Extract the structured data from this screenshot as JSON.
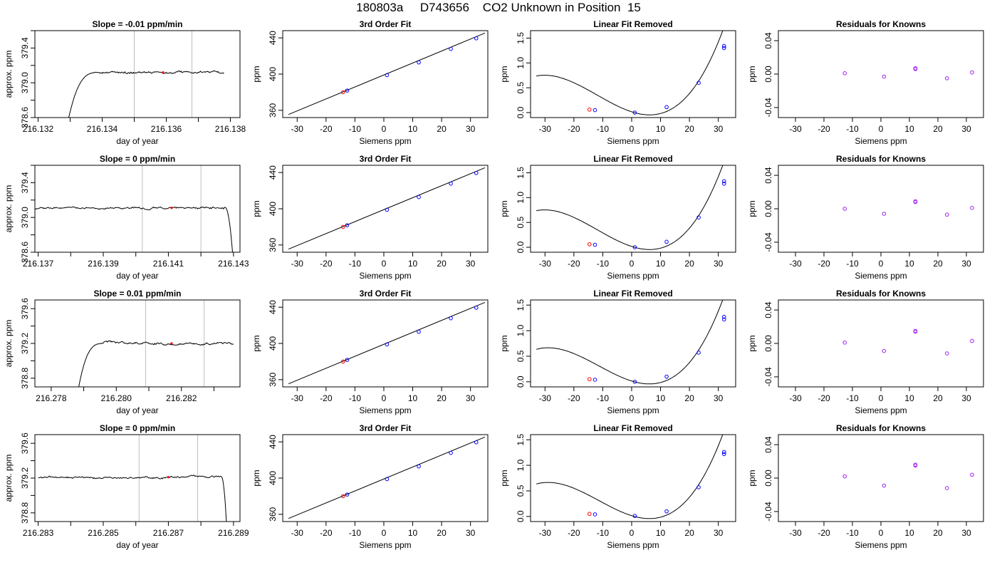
{
  "figure": {
    "title": "180803a     D743656    CO2 Unknown in Position  15"
  },
  "colors": {
    "line": "#000000",
    "grid": "#bebebe",
    "unknown": "#ff0000",
    "known": "#0000ff",
    "residual": "#a020f0"
  },
  "chart_data": [
    {
      "type": "line",
      "id": "r1-time",
      "title": "Slope =  -0.01  ppm/min",
      "xlabel": "day of year",
      "ylabel": "approx. ppm",
      "xlim": [
        216.1319,
        216.1383
      ],
      "ylim": [
        378.6,
        379.6
      ],
      "xticks": [
        216.132,
        216.134,
        216.136,
        216.138
      ],
      "xtick_labels": [
        "216.132",
        "216.134",
        "216.136",
        "216.138"
      ],
      "yticks": [
        378.6,
        379.0,
        379.4
      ],
      "ytick_labels": [
        "378.6",
        "379.0",
        "379.4"
      ],
      "vlines": [
        216.135,
        216.1368
      ],
      "trace": {
        "start": 216.1329,
        "rise_end": 216.1339,
        "end": 216.1378,
        "base": 378.5,
        "plateau": 379.12,
        "noise": 0.012,
        "fall": false
      },
      "marker": {
        "x": 216.1359,
        "y": 379.12
      }
    },
    {
      "type": "line",
      "id": "r2-time",
      "title": "Slope =  0  ppm/min",
      "xlabel": "day of year",
      "ylabel": "approx. ppm",
      "xlim": [
        216.1369,
        216.1432
      ],
      "ylim": [
        378.6,
        379.6
      ],
      "xticks": [
        216.137,
        216.139,
        216.141,
        216.143
      ],
      "xtick_labels": [
        "216.137",
        "216.139",
        "216.141",
        "216.143"
      ],
      "yticks": [
        378.6,
        379.0,
        379.4
      ],
      "ytick_labels": [
        "378.6",
        "379.0",
        "379.4"
      ],
      "vlines": [
        216.1402,
        216.142
      ],
      "trace": {
        "start": 216.1369,
        "end": 216.143,
        "fall_start": 216.1427,
        "base": 378.5,
        "plateau": 379.11,
        "noise": 0.012,
        "fall": true
      },
      "marker": {
        "x": 216.1411,
        "y": 379.11
      }
    },
    {
      "type": "line",
      "id": "r3-time",
      "title": "Slope =  0.01  ppm/min",
      "xlabel": "day of year",
      "ylabel": "approx. ppm",
      "xlim": [
        216.2775,
        216.2838
      ],
      "ylim": [
        378.7,
        379.7
      ],
      "xticks": [
        216.278,
        216.28,
        216.282
      ],
      "xtick_labels": [
        "216.278",
        "216.280",
        "216.282"
      ],
      "yticks": [
        378.8,
        379.2,
        379.6
      ],
      "ytick_labels": [
        "378.8",
        "379.2",
        "379.6"
      ],
      "vlines": [
        216.2809,
        216.2827
      ],
      "trace": {
        "start": 216.2788,
        "rise_end": 216.2796,
        "end": 216.2836,
        "base": 378.6,
        "plateau": 379.2,
        "noise": 0.013,
        "fall": false
      },
      "marker": {
        "x": 216.2817,
        "y": 379.2
      }
    },
    {
      "type": "line",
      "id": "r4-time",
      "title": "Slope =  0  ppm/min",
      "xlabel": "day of year",
      "ylabel": "approx. ppm",
      "xlim": [
        216.2829,
        216.2892
      ],
      "ylim": [
        378.7,
        379.7
      ],
      "xticks": [
        216.283,
        216.285,
        216.287,
        216.289
      ],
      "xtick_labels": [
        "216.283",
        "216.285",
        "216.287",
        "216.289"
      ],
      "yticks": [
        378.8,
        379.2,
        379.6
      ],
      "ytick_labels": [
        "378.8",
        "379.2",
        "379.6"
      ],
      "vlines": [
        216.2861,
        216.2879
      ],
      "trace": {
        "start": 216.283,
        "end": 216.2888,
        "fall_start": 216.2886,
        "base": 378.6,
        "plateau": 379.21,
        "noise": 0.012,
        "fall": true
      },
      "marker": {
        "x": 216.287,
        "y": 379.21
      }
    },
    {
      "type": "scatter",
      "id": "r1-fit",
      "title": "3rd Order Fit",
      "xlabel": "Siemens ppm",
      "ylabel": "ppm",
      "xlim": [
        -35,
        36
      ],
      "ylim": [
        352,
        448
      ],
      "xticks": [
        -30,
        -20,
        -10,
        0,
        10,
        20,
        30
      ],
      "yticks": [
        360,
        400,
        440
      ],
      "curve": {
        "x": [
          -33,
          35
        ],
        "y": [
          355.4,
          445.3
        ]
      },
      "knowns": [
        {
          "x": -12.7,
          "y": 381.8
        },
        {
          "x": 1.1,
          "y": 398.9
        },
        {
          "x": 12.1,
          "y": 412.9
        },
        {
          "x": 23.2,
          "y": 427.8
        },
        {
          "x": 32.0,
          "y": 439.5
        }
      ],
      "unknown": {
        "x": -14.1,
        "y": 380.0
      }
    },
    {
      "type": "scatter",
      "id": "r2-fit",
      "title": "3rd Order Fit",
      "xlabel": "Siemens ppm",
      "ylabel": "ppm",
      "xlim": [
        -35,
        36
      ],
      "ylim": [
        352,
        448
      ],
      "xticks": [
        -30,
        -20,
        -10,
        0,
        10,
        20,
        30
      ],
      "yticks": [
        360,
        400,
        440
      ],
      "curve": {
        "x": [
          -33,
          35
        ],
        "y": [
          355.4,
          445.3
        ]
      },
      "knowns": [
        {
          "x": -12.7,
          "y": 381.8
        },
        {
          "x": 1.1,
          "y": 398.9
        },
        {
          "x": 12.1,
          "y": 412.9
        },
        {
          "x": 23.2,
          "y": 427.8
        },
        {
          "x": 32.0,
          "y": 439.5
        }
      ],
      "unknown": {
        "x": -14.1,
        "y": 380.0
      }
    },
    {
      "type": "scatter",
      "id": "r3-fit",
      "title": "3rd Order Fit",
      "xlabel": "Siemens ppm",
      "ylabel": "ppm",
      "xlim": [
        -35,
        36
      ],
      "ylim": [
        352,
        448
      ],
      "xticks": [
        -30,
        -20,
        -10,
        0,
        10,
        20,
        30
      ],
      "yticks": [
        360,
        400,
        440
      ],
      "curve": {
        "x": [
          -33,
          35
        ],
        "y": [
          355.4,
          445.3
        ]
      },
      "knowns": [
        {
          "x": -12.7,
          "y": 381.8
        },
        {
          "x": 1.1,
          "y": 398.9
        },
        {
          "x": 12.1,
          "y": 412.9
        },
        {
          "x": 23.2,
          "y": 427.8
        },
        {
          "x": 32.0,
          "y": 439.5
        }
      ],
      "unknown": {
        "x": -14.1,
        "y": 380.0
      }
    },
    {
      "type": "scatter",
      "id": "r4-fit",
      "title": "3rd Order Fit",
      "xlabel": "Siemens ppm",
      "ylabel": "ppm",
      "xlim": [
        -35,
        36
      ],
      "ylim": [
        352,
        448
      ],
      "xticks": [
        -30,
        -20,
        -10,
        0,
        10,
        20,
        30
      ],
      "yticks": [
        360,
        400,
        440
      ],
      "curve": {
        "x": [
          -33,
          35
        ],
        "y": [
          355.4,
          445.3
        ]
      },
      "knowns": [
        {
          "x": -12.7,
          "y": 381.8
        },
        {
          "x": 1.1,
          "y": 398.9
        },
        {
          "x": 12.1,
          "y": 412.9
        },
        {
          "x": 23.2,
          "y": 427.8
        },
        {
          "x": 32.0,
          "y": 439.5
        }
      ],
      "unknown": {
        "x": -14.1,
        "y": 380.0
      }
    },
    {
      "type": "scatter",
      "id": "r1-linrem",
      "title": "Linear Fit Removed",
      "xlabel": "Siemens ppm",
      "ylabel": "ppm",
      "xlim": [
        -35,
        36
      ],
      "ylim": [
        -0.1,
        1.65
      ],
      "xticks": [
        -30,
        -20,
        -10,
        0,
        10,
        20,
        30
      ],
      "yticks": [
        0.0,
        0.5,
        1.0,
        1.5
      ],
      "ytick_labels": [
        "0.0",
        "0.5",
        "1.0",
        "1.5"
      ],
      "cubic": {
        "a": 3.32e-05,
        "b": 0.00119,
        "c": -0.0187,
        "d": 0.0165,
        "x0": -33,
        "x1": 35
      },
      "knowns": [
        {
          "x": -12.7,
          "y": 0.05
        },
        {
          "x": 1.1,
          "y": 0.0
        },
        {
          "x": 12.1,
          "y": 0.11
        },
        {
          "x": 23.2,
          "y": 0.6
        },
        {
          "x": 32.0,
          "y": 1.3
        },
        {
          "x": 32.0,
          "y": 1.34
        }
      ],
      "unknown": {
        "x": -14.6,
        "y": 0.06
      }
    },
    {
      "type": "scatter",
      "id": "r2-linrem",
      "title": "Linear Fit Removed",
      "xlabel": "Siemens ppm",
      "ylabel": "ppm",
      "xlim": [
        -35,
        36
      ],
      "ylim": [
        -0.1,
        1.65
      ],
      "xticks": [
        -30,
        -20,
        -10,
        0,
        10,
        20,
        30
      ],
      "yticks": [
        0.0,
        0.5,
        1.0,
        1.5
      ],
      "ytick_labels": [
        "0.0",
        "0.5",
        "1.0",
        "1.5"
      ],
      "cubic": {
        "a": 3.32e-05,
        "b": 0.00119,
        "c": -0.0187,
        "d": 0.0165,
        "x0": -33,
        "x1": 35
      },
      "knowns": [
        {
          "x": -12.7,
          "y": 0.05
        },
        {
          "x": 1.1,
          "y": 0.0
        },
        {
          "x": 12.1,
          "y": 0.11
        },
        {
          "x": 23.2,
          "y": 0.6
        },
        {
          "x": 32.0,
          "y": 1.28
        },
        {
          "x": 32.0,
          "y": 1.33
        }
      ],
      "unknown": {
        "x": -14.6,
        "y": 0.06
      }
    },
    {
      "type": "scatter",
      "id": "r3-linrem",
      "title": "Linear Fit Removed",
      "xlabel": "Siemens ppm",
      "ylabel": "ppm",
      "xlim": [
        -35,
        36
      ],
      "ylim": [
        -0.1,
        1.6
      ],
      "xticks": [
        -30,
        -20,
        -10,
        0,
        10,
        20,
        30
      ],
      "yticks": [
        0.0,
        0.5,
        1.0,
        1.5
      ],
      "ytick_labels": [
        "0.0",
        "0.5",
        "1.0",
        "1.5"
      ],
      "cubic": {
        "a": 3.28e-05,
        "b": 0.00112,
        "c": -0.0175,
        "d": 0.0155,
        "x0": -33,
        "x1": 35
      },
      "knowns": [
        {
          "x": -12.7,
          "y": 0.04
        },
        {
          "x": 1.1,
          "y": 0.0
        },
        {
          "x": 12.1,
          "y": 0.1
        },
        {
          "x": 23.2,
          "y": 0.57
        },
        {
          "x": 32.0,
          "y": 1.22
        },
        {
          "x": 32.0,
          "y": 1.27
        }
      ],
      "unknown": {
        "x": -14.6,
        "y": 0.05
      }
    },
    {
      "type": "scatter",
      "id": "r4-linrem",
      "title": "Linear Fit Removed",
      "xlabel": "Siemens ppm",
      "ylabel": "ppm",
      "xlim": [
        -35,
        36
      ],
      "ylim": [
        -0.1,
        1.6
      ],
      "xticks": [
        -30,
        -20,
        -10,
        0,
        10,
        20,
        30
      ],
      "yticks": [
        0.0,
        0.5,
        1.0,
        1.5
      ],
      "ytick_labels": [
        "0.0",
        "0.5",
        "1.0",
        "1.5"
      ],
      "cubic": {
        "a": 3.28e-05,
        "b": 0.00112,
        "c": -0.0175,
        "d": 0.0155,
        "x0": -33,
        "x1": 35
      },
      "knowns": [
        {
          "x": -12.7,
          "y": 0.04
        },
        {
          "x": 1.1,
          "y": 0.01
        },
        {
          "x": 12.1,
          "y": 0.1
        },
        {
          "x": 23.2,
          "y": 0.57
        },
        {
          "x": 32.0,
          "y": 1.22
        },
        {
          "x": 32.0,
          "y": 1.26
        }
      ],
      "unknown": {
        "x": -14.6,
        "y": 0.05
      }
    },
    {
      "type": "scatter",
      "id": "r1-resid",
      "title": "Residuals for Knowns",
      "xlabel": "Siemens ppm",
      "ylabel": "ppm",
      "xlim": [
        -36,
        36
      ],
      "ylim": [
        -0.052,
        0.052
      ],
      "xticks": [
        -30,
        -20,
        -10,
        0,
        10,
        20,
        30
      ],
      "yticks": [
        -0.04,
        0.0,
        0.04
      ],
      "ytick_labels": [
        "-0.04",
        "0.00",
        "0.04"
      ],
      "points": [
        {
          "x": -12.7,
          "y": 0.001
        },
        {
          "x": 1.1,
          "y": -0.003
        },
        {
          "x": 12.1,
          "y": 0.007
        },
        {
          "x": 12.1,
          "y": 0.006
        },
        {
          "x": 23.2,
          "y": -0.005
        },
        {
          "x": 32.0,
          "y": 0.002
        }
      ]
    },
    {
      "type": "scatter",
      "id": "r2-resid",
      "title": "Residuals for Knowns",
      "xlabel": "Siemens ppm",
      "ylabel": "ppm",
      "xlim": [
        -36,
        36
      ],
      "ylim": [
        -0.052,
        0.052
      ],
      "xticks": [
        -30,
        -20,
        -10,
        0,
        10,
        20,
        30
      ],
      "yticks": [
        -0.04,
        0.0,
        0.04
      ],
      "ytick_labels": [
        "-0.04",
        "0.00",
        "0.04"
      ],
      "points": [
        {
          "x": -12.7,
          "y": 0.0
        },
        {
          "x": 1.1,
          "y": -0.006
        },
        {
          "x": 12.1,
          "y": 0.008
        },
        {
          "x": 12.1,
          "y": 0.009
        },
        {
          "x": 23.2,
          "y": -0.007
        },
        {
          "x": 32.0,
          "y": 0.001
        }
      ]
    },
    {
      "type": "scatter",
      "id": "r3-resid",
      "title": "Residuals for Knowns",
      "xlabel": "Siemens ppm",
      "ylabel": "ppm",
      "xlim": [
        -36,
        36
      ],
      "ylim": [
        -0.052,
        0.052
      ],
      "xticks": [
        -30,
        -20,
        -10,
        0,
        10,
        20,
        30
      ],
      "yticks": [
        -0.04,
        0.0,
        0.04
      ],
      "ytick_labels": [
        "-0.04",
        "0.00",
        "0.04"
      ],
      "points": [
        {
          "x": -12.7,
          "y": 0.001
        },
        {
          "x": 1.1,
          "y": -0.009
        },
        {
          "x": 12.1,
          "y": 0.014
        },
        {
          "x": 12.1,
          "y": 0.015
        },
        {
          "x": 23.2,
          "y": -0.012
        },
        {
          "x": 32.0,
          "y": 0.003
        }
      ]
    },
    {
      "type": "scatter",
      "id": "r4-resid",
      "title": "Residuals for Knowns",
      "xlabel": "Siemens ppm",
      "ylabel": "ppm",
      "xlim": [
        -36,
        36
      ],
      "ylim": [
        -0.052,
        0.052
      ],
      "xticks": [
        -30,
        -20,
        -10,
        0,
        10,
        20,
        30
      ],
      "yticks": [
        -0.04,
        0.0,
        0.04
      ],
      "ytick_labels": [
        "-0.04",
        "0.00",
        "0.04"
      ],
      "points": [
        {
          "x": -12.7,
          "y": 0.002
        },
        {
          "x": 1.1,
          "y": -0.009
        },
        {
          "x": 12.1,
          "y": 0.015
        },
        {
          "x": 12.1,
          "y": 0.016
        },
        {
          "x": 23.2,
          "y": -0.012
        },
        {
          "x": 32.0,
          "y": 0.004
        }
      ]
    }
  ]
}
